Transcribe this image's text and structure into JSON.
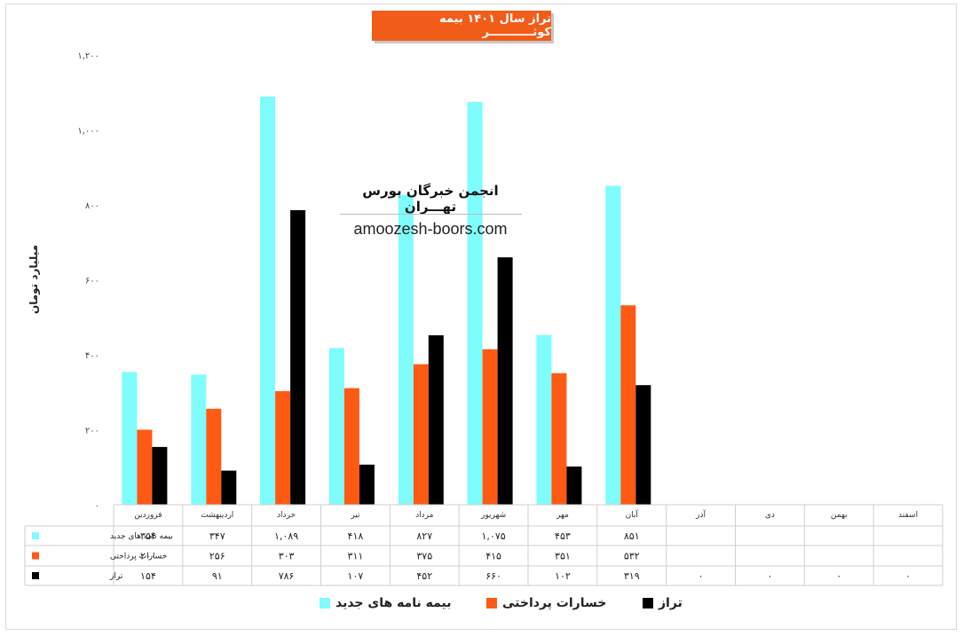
{
  "title": "تراز سال ۱۴۰۱ بیمه کوثـــــــــــر",
  "watermark": {
    "title": "انجمن خبرگان بورس تهـــران",
    "url": "amoozesh-boors.com"
  },
  "chart_data": {
    "type": "bar",
    "ylabel": "میلیارد تومان",
    "ylim": [
      0,
      1200
    ],
    "yticks": [
      {
        "value": 0,
        "label": "۰"
      },
      {
        "value": 200,
        "label": "۲۰۰"
      },
      {
        "value": 400,
        "label": "۴۰۰"
      },
      {
        "value": 600,
        "label": "۶۰۰"
      },
      {
        "value": 800,
        "label": "۸۰۰"
      },
      {
        "value": 1000,
        "label": "۱,۰۰۰"
      },
      {
        "value": 1200,
        "label": "۱,۲۰۰"
      }
    ],
    "categories": [
      "فروردین",
      "اردیبهشت",
      "خرداد",
      "تیر",
      "مرداد",
      "شهریور",
      "مهر",
      "آبان",
      "آذر",
      "دی",
      "بهمن",
      "اسفند"
    ],
    "series": [
      {
        "name": "بیمه نامه های جدید",
        "color": "#7ffcfc",
        "values": [
          354,
          347,
          1089,
          418,
          827,
          1075,
          453,
          851,
          null,
          null,
          null,
          null
        ],
        "labels": [
          "۳۵۴",
          "۳۴۷",
          "۱,۰۸۹",
          "۴۱۸",
          "۸۲۷",
          "۱,۰۷۵",
          "۴۵۳",
          "۸۵۱",
          "",
          "",
          "",
          ""
        ]
      },
      {
        "name": "خسارات پرداختی",
        "color": "#ff5a14",
        "values": [
          200,
          256,
          303,
          311,
          375,
          415,
          351,
          532,
          null,
          null,
          null,
          null
        ],
        "labels": [
          "۲۰۰",
          "۲۵۶",
          "۳۰۳",
          "۳۱۱",
          "۳۷۵",
          "۴۱۵",
          "۳۵۱",
          "۵۳۲",
          "",
          "",
          "",
          ""
        ]
      },
      {
        "name": "تراز",
        "color": "#000000",
        "values": [
          154,
          91,
          786,
          107,
          452,
          660,
          102,
          319,
          0,
          0,
          0,
          0
        ],
        "labels": [
          "۱۵۴",
          "۹۱",
          "۷۸۶",
          "۱۰۷",
          "۴۵۲",
          "۶۶۰",
          "۱۰۲",
          "۳۱۹",
          "۰",
          "۰",
          "۰",
          "۰"
        ]
      }
    ],
    "grid": false,
    "legend_position": "bottom"
  }
}
